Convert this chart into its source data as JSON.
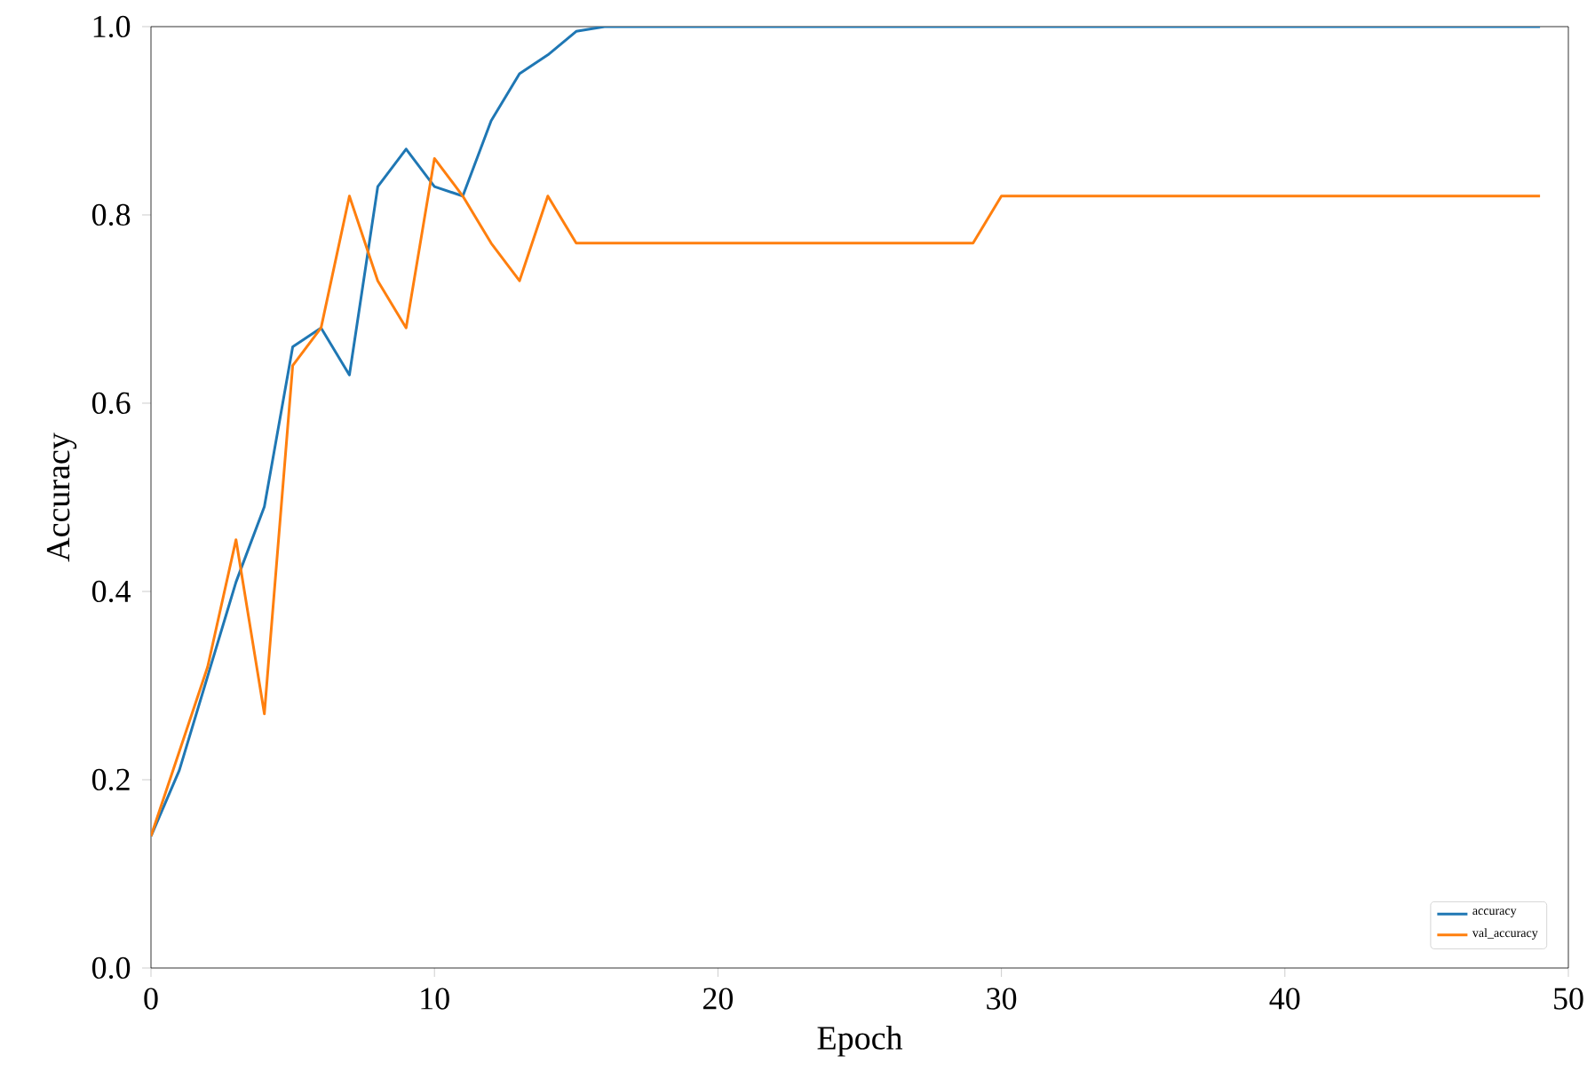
{
  "chart_data": {
    "type": "line",
    "xlabel": "Epoch",
    "ylabel": "Accuracy",
    "x": [
      0,
      1,
      2,
      3,
      4,
      5,
      6,
      7,
      8,
      9,
      10,
      11,
      12,
      13,
      14,
      15,
      16,
      17,
      18,
      19,
      20,
      21,
      22,
      23,
      24,
      25,
      26,
      27,
      28,
      29,
      30,
      31,
      32,
      33,
      34,
      35,
      36,
      37,
      38,
      39,
      40,
      41,
      42,
      43,
      44,
      45,
      46,
      47,
      48,
      49
    ],
    "series": [
      {
        "name": "accuracy",
        "color": "#1f77b4",
        "values": [
          0.14,
          0.21,
          0.31,
          0.41,
          0.49,
          0.66,
          0.68,
          0.63,
          0.83,
          0.87,
          0.83,
          0.82,
          0.9,
          0.95,
          0.97,
          0.995,
          1.0,
          1.0,
          1.0,
          1.0,
          1.0,
          1.0,
          1.0,
          1.0,
          1.0,
          1.0,
          1.0,
          1.0,
          1.0,
          1.0,
          1.0,
          1.0,
          1.0,
          1.0,
          1.0,
          1.0,
          1.0,
          1.0,
          1.0,
          1.0,
          1.0,
          1.0,
          1.0,
          1.0,
          1.0,
          1.0,
          1.0,
          1.0,
          1.0,
          1.0
        ]
      },
      {
        "name": "val_accuracy",
        "color": "#ff7f0e",
        "values": [
          0.14,
          0.23,
          0.32,
          0.455,
          0.27,
          0.64,
          0.68,
          0.82,
          0.73,
          0.68,
          0.86,
          0.82,
          0.77,
          0.73,
          0.82,
          0.77,
          0.77,
          0.77,
          0.77,
          0.77,
          0.77,
          0.77,
          0.77,
          0.77,
          0.77,
          0.77,
          0.77,
          0.77,
          0.77,
          0.77,
          0.82,
          0.82,
          0.82,
          0.82,
          0.82,
          0.82,
          0.82,
          0.82,
          0.82,
          0.82,
          0.82,
          0.82,
          0.82,
          0.82,
          0.82,
          0.82,
          0.82,
          0.82,
          0.82,
          0.82
        ]
      }
    ],
    "xlim": [
      0,
      50
    ],
    "ylim": [
      0,
      1
    ],
    "xticks": [
      0,
      10,
      20,
      30,
      40,
      50
    ],
    "yticks": [
      {
        "value": 0,
        "label": "0.0"
      },
      0.2,
      0.4,
      0.6,
      0.8,
      {
        "value": 1,
        "label": "1.0"
      }
    ],
    "grid": false,
    "legend": "bottom right",
    "marker": "none",
    "line_style": "solid"
  }
}
